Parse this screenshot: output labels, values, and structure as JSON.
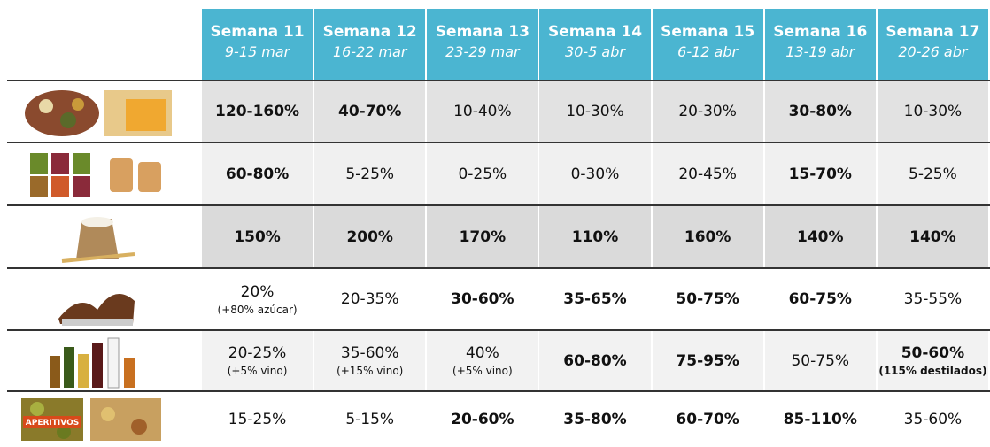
{
  "table": {
    "columns": [
      {
        "title": "Semana 11",
        "dates": "9-15 mar"
      },
      {
        "title": "Semana 12",
        "dates": "16-22 mar"
      },
      {
        "title": "Semana 13",
        "dates": "23-29 mar"
      },
      {
        "title": "Semana 14",
        "dates": "30-5 abr"
      },
      {
        "title": "Semana 15",
        "dates": "6-12 abr"
      },
      {
        "title": "Semana 16",
        "dates": "13-19 abr"
      },
      {
        "title": "Semana 17",
        "dates": "20-26 abr"
      }
    ],
    "rows": [
      {
        "cells": [
          {
            "text": "120-160%",
            "bold": true
          },
          {
            "text": "40-70%",
            "bold": true
          },
          {
            "text": "10-40%"
          },
          {
            "text": "10-30%"
          },
          {
            "text": "20-30%"
          },
          {
            "text": "30-80%",
            "bold": true
          },
          {
            "text": "10-30%"
          }
        ]
      },
      {
        "cells": [
          {
            "text": "60-80%",
            "bold": true
          },
          {
            "text": "5-25%"
          },
          {
            "text": "0-25%"
          },
          {
            "text": "0-30%"
          },
          {
            "text": "20-45%"
          },
          {
            "text": "15-70%",
            "bold": true
          },
          {
            "text": "5-25%"
          }
        ]
      },
      {
        "cells": [
          {
            "text": "150%",
            "bold": true
          },
          {
            "text": "200%",
            "bold": true
          },
          {
            "text": "170%",
            "bold": true
          },
          {
            "text": "110%",
            "bold": true
          },
          {
            "text": "160%",
            "bold": true
          },
          {
            "text": "140%",
            "bold": true
          },
          {
            "text": "140%",
            "bold": true
          }
        ]
      },
      {
        "cells": [
          {
            "text": "20%",
            "note": "(+80% azúcar)"
          },
          {
            "text": "20-35%"
          },
          {
            "text": "30-60%",
            "bold": true
          },
          {
            "text": "35-65%",
            "bold": true
          },
          {
            "text": "50-75%",
            "bold": true
          },
          {
            "text": "60-75%",
            "bold": true
          },
          {
            "text": "35-55%"
          }
        ]
      },
      {
        "cells": [
          {
            "text": "20-25%",
            "note": "(+5% vino)"
          },
          {
            "text": "35-60%",
            "note": "(+15% vino)"
          },
          {
            "text": "40%",
            "note": "(+5% vino)"
          },
          {
            "text": "60-80%",
            "bold": true
          },
          {
            "text": "75-95%",
            "bold": true
          },
          {
            "text": "50-75%"
          },
          {
            "text": "50-60%",
            "note": "(115% destilados)",
            "bold": true
          }
        ]
      },
      {
        "icon_label": "APERITIVOS",
        "cells": [
          {
            "text": "15-25%"
          },
          {
            "text": "5-15%"
          },
          {
            "text": "20-60%",
            "bold": true
          },
          {
            "text": "35-80%",
            "bold": true
          },
          {
            "text": "60-70%",
            "bold": true
          },
          {
            "text": "85-110%",
            "bold": true
          },
          {
            "text": "35-60%"
          }
        ]
      }
    ]
  }
}
